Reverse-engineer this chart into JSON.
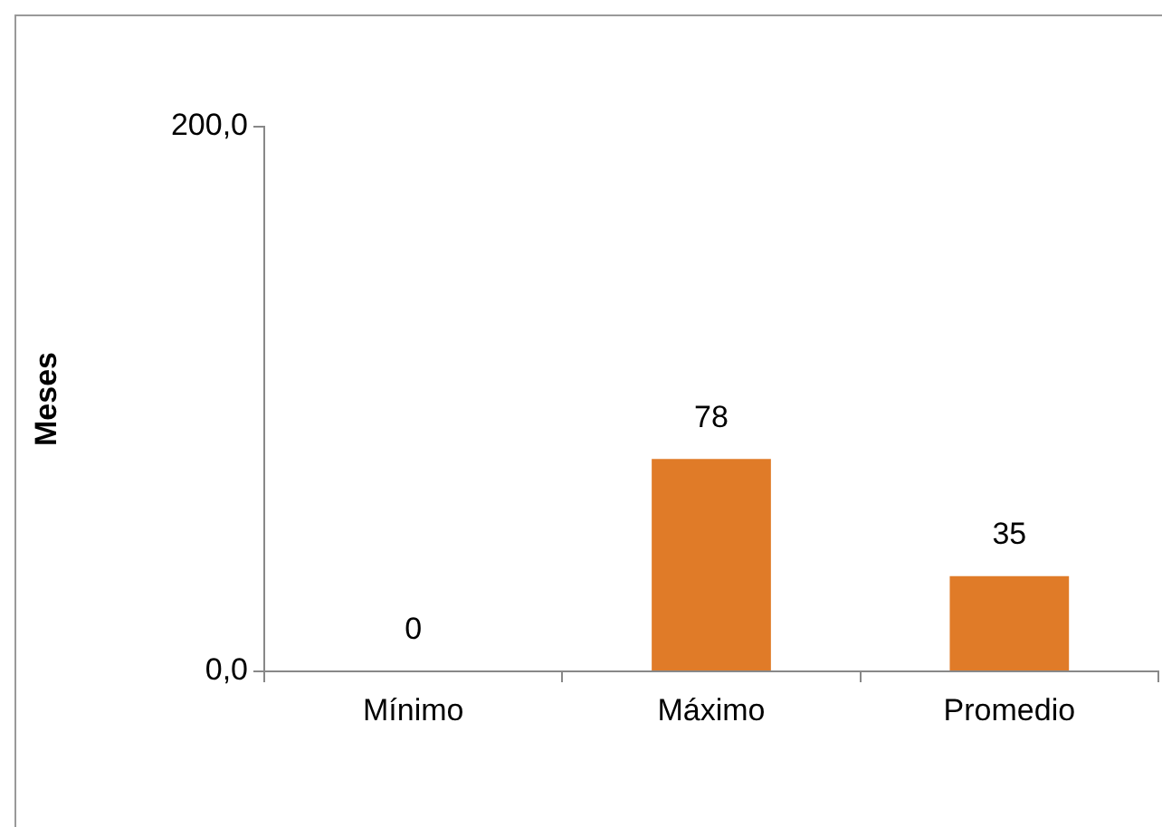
{
  "chart_data": {
    "type": "bar",
    "ylabel": "Meses",
    "categories": [
      "Mínimo",
      "Máximo",
      "Promedio"
    ],
    "values": [
      0,
      78,
      35
    ],
    "color": "#e07b28",
    "ylim": [
      0,
      200
    ],
    "yticks": [
      {
        "value": 0,
        "label": "0,0"
      },
      {
        "value": 200,
        "label": "200,0"
      }
    ],
    "grid": false,
    "legend": false,
    "data_labels": true
  }
}
